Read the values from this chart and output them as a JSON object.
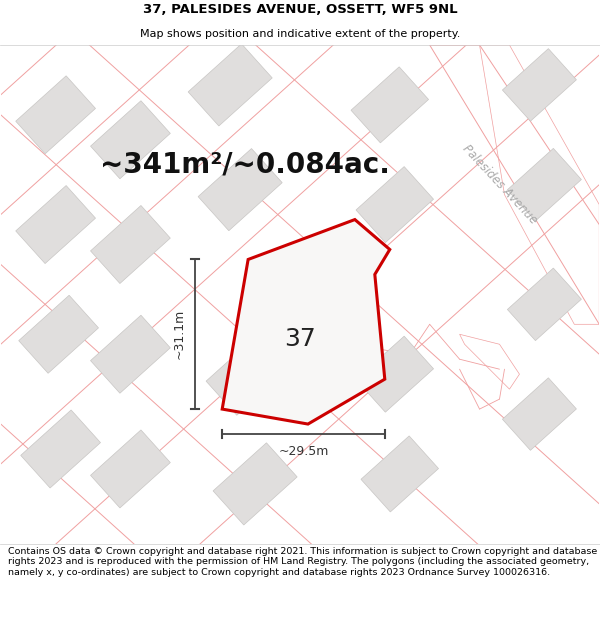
{
  "title_line1": "37, PALESIDES AVENUE, OSSETT, WF5 9NL",
  "title_line2": "Map shows position and indicative extent of the property.",
  "area_text": "~341m²/~0.084ac.",
  "label_37": "37",
  "dim_height": "~31.1m",
  "dim_width": "~29.5m",
  "street_label": "Palesides Avenue",
  "footer_text": "Contains OS data © Crown copyright and database right 2021. This information is subject to Crown copyright and database rights 2023 and is reproduced with the permission of HM Land Registry. The polygons (including the associated geometry, namely x, y co-ordinates) are subject to Crown copyright and database rights 2023 Ordnance Survey 100026316.",
  "map_bg": "#f2f0ee",
  "road_surface": "#ffffff",
  "building_fill": "#e0dedd",
  "building_edge": "#c8c6c4",
  "boundary_color": "#f0a0a0",
  "plot_fill": "#f8f7f6",
  "plot_edge": "#cc0000",
  "dim_color": "#444444",
  "street_label_color": "#aaaaaa",
  "title_fontsize": 9.5,
  "subtitle_fontsize": 8,
  "area_fontsize": 20,
  "label_fontsize": 18,
  "footer_fontsize": 6.8
}
